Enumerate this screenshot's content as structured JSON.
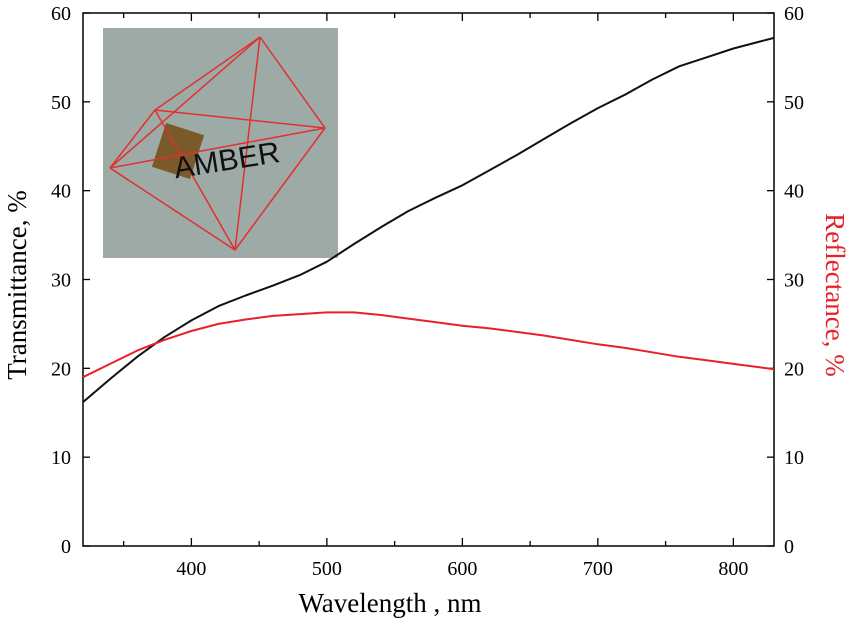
{
  "chart_data": {
    "type": "line",
    "xlabel": "Wavelength , nm",
    "ylabel": "Transmittance, %",
    "y2label": "Reflectance, %",
    "xlim": [
      320,
      830
    ],
    "ylim": [
      0,
      60
    ],
    "y2lim": [
      0,
      60
    ],
    "x_ticks": [
      400,
      500,
      600,
      700,
      800
    ],
    "y_ticks": [
      0,
      10,
      20,
      30,
      40,
      50,
      60
    ],
    "y2_ticks": [
      0,
      10,
      20,
      30,
      40,
      50,
      60
    ],
    "series": [
      {
        "name": "Transmittance",
        "axis": "left",
        "color": "#111111",
        "x": [
          320,
          340,
          360,
          380,
          400,
          420,
          440,
          460,
          480,
          500,
          520,
          540,
          560,
          580,
          600,
          620,
          640,
          660,
          680,
          700,
          720,
          740,
          760,
          780,
          800,
          820,
          830
        ],
        "y": [
          16.2,
          18.8,
          21.3,
          23.5,
          25.4,
          27.0,
          28.2,
          29.3,
          30.5,
          32.0,
          34.0,
          35.9,
          37.7,
          39.2,
          40.6,
          42.3,
          44.0,
          45.8,
          47.6,
          49.3,
          50.8,
          52.5,
          54.0,
          55.0,
          56.0,
          56.8,
          57.2
        ]
      },
      {
        "name": "Reflectance",
        "axis": "right",
        "color": "#e8202a",
        "x": [
          320,
          340,
          360,
          380,
          400,
          420,
          440,
          460,
          480,
          500,
          520,
          540,
          560,
          580,
          600,
          620,
          640,
          660,
          680,
          700,
          720,
          740,
          760,
          780,
          800,
          820,
          830
        ],
        "y": [
          19.0,
          20.5,
          22.0,
          23.2,
          24.2,
          25.0,
          25.5,
          25.9,
          26.1,
          26.3,
          26.3,
          26.0,
          25.6,
          25.2,
          24.8,
          24.5,
          24.1,
          23.7,
          23.2,
          22.7,
          22.3,
          21.8,
          21.3,
          20.9,
          20.5,
          20.1,
          19.9
        ]
      }
    ],
    "inset": {
      "description_text": "AMBER"
    }
  }
}
